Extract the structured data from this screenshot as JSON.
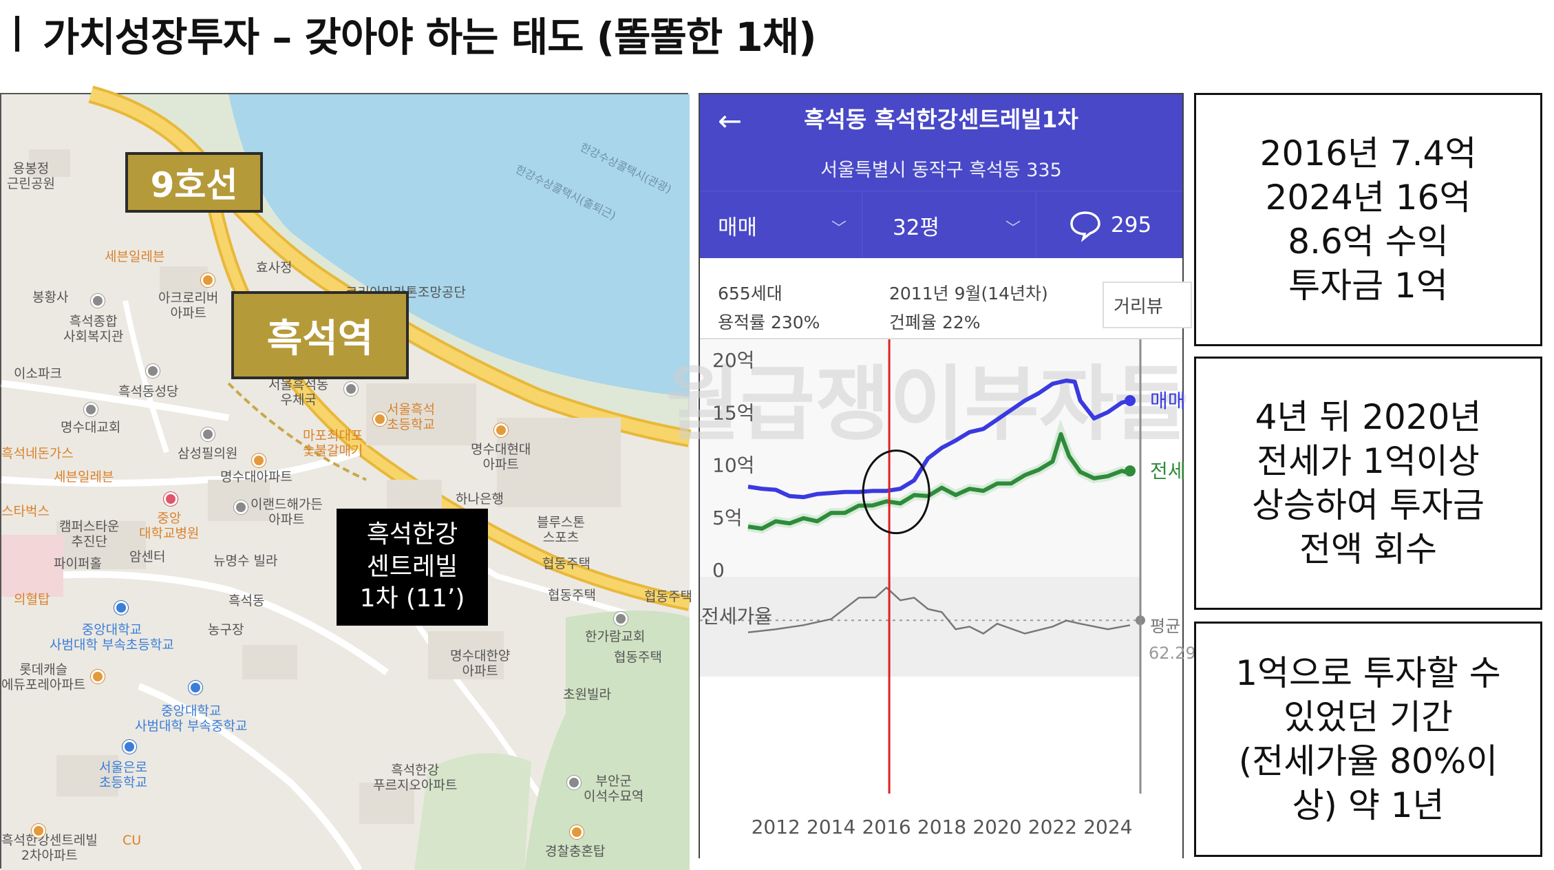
{
  "slide": {
    "title": "가치성장투자 – 갖아야 하는 태도 (똘똘한 1채)"
  },
  "map": {
    "line_tag": "9호선",
    "station_tag": "흑석역",
    "target_tag": [
      "흑석한강",
      "센트레빌",
      "1차 (11’)"
    ],
    "labels": [
      {
        "text": "용봉정\n근린공원",
        "c": ""
      },
      {
        "text": "세븐일레븐",
        "c": "orange"
      },
      {
        "text": "효사정",
        "c": ""
      },
      {
        "text": "봉황사",
        "c": ""
      },
      {
        "text": "아크로리버\n아파트",
        "c": ""
      },
      {
        "text": "흑석종합\n사회복지관",
        "c": ""
      },
      {
        "text": "이소파크",
        "c": ""
      },
      {
        "text": "흑석동성당",
        "c": ""
      },
      {
        "text": "서울흑석동\n우체국",
        "c": ""
      },
      {
        "text": "서울흑석\n초등학교",
        "c": "orange"
      },
      {
        "text": "명수대교회",
        "c": ""
      },
      {
        "text": "마포최대포\n숯불갈매기",
        "c": "orange"
      },
      {
        "text": "명수대현대\n아파트",
        "c": ""
      },
      {
        "text": "삼성필의원",
        "c": ""
      },
      {
        "text": "흑석네돈가스",
        "c": "orange"
      },
      {
        "text": "세븐일레븐",
        "c": "orange"
      },
      {
        "text": "명수대아파트",
        "c": ""
      },
      {
        "text": "하나은행",
        "c": ""
      },
      {
        "text": "스타벅스",
        "c": "orange"
      },
      {
        "text": "캠퍼스타운\n추진단",
        "c": ""
      },
      {
        "text": "중앙\n대학교병원",
        "c": "orange"
      },
      {
        "text": "이랜드해가든\n아파트",
        "c": ""
      },
      {
        "text": "블루스톤\n스포츠",
        "c": ""
      },
      {
        "text": "파이퍼홀",
        "c": ""
      },
      {
        "text": "암센터",
        "c": ""
      },
      {
        "text": "뉴명수 빌라",
        "c": ""
      },
      {
        "text": "협동주택",
        "c": ""
      },
      {
        "text": "의혈탑",
        "c": "orange"
      },
      {
        "text": "흑석동",
        "c": ""
      },
      {
        "text": "협동주택",
        "c": ""
      },
      {
        "text": "협동주택",
        "c": ""
      },
      {
        "text": "중앙대학교\n사범대학 부속초등학교",
        "c": "blue"
      },
      {
        "text": "농구장",
        "c": ""
      },
      {
        "text": "한가람교회",
        "c": ""
      },
      {
        "text": "협동주택",
        "c": ""
      },
      {
        "text": "롯데캐슬\n에듀포레아파트",
        "c": ""
      },
      {
        "text": "명수대한양\n아파트",
        "c": ""
      },
      {
        "text": "중앙대학교\n사범대학 부속중학교",
        "c": "blue"
      },
      {
        "text": "초원빌라",
        "c": ""
      },
      {
        "text": "서울은로\n초등학교",
        "c": "blue"
      },
      {
        "text": "흑석한강\n푸르지오아파트",
        "c": ""
      },
      {
        "text": "부안군\n이석수묘역",
        "c": ""
      },
      {
        "text": "흑석한강센트레빌\n2차아파트",
        "c": ""
      },
      {
        "text": "CU",
        "c": "orange"
      },
      {
        "text": "경찰충혼탑",
        "c": ""
      },
      {
        "text": "코리아마라톤조망공단",
        "c": ""
      },
      {
        "text": "한강수상콜택시(관광)",
        "c": "river"
      },
      {
        "text": "한강수상콜택시(출퇴근)",
        "c": "river"
      }
    ]
  },
  "app": {
    "back_icon": "arrow-left-icon",
    "title": "흑석동 흑석한강센트레빌1차",
    "address": "서울특별시 동작구 흑석동 335",
    "tabs": {
      "deal": "매매",
      "size": "32평",
      "comments": "295"
    },
    "info": {
      "households": "655세대",
      "completion": "2011년 9월(14년차)",
      "far": "용적률 230%",
      "bcr": "건폐율 22%",
      "distance_btn": "거리뷰"
    },
    "watermark": "월급쟁이부자들",
    "chart_data": {
      "type": "line",
      "x_ticks": [
        "2012",
        "2014",
        "2016",
        "2018",
        "2020",
        "2022",
        "2024"
      ],
      "y_ticks": [
        "20억",
        "15억",
        "10억",
        "5억",
        "0"
      ],
      "ylim": [
        0,
        20
      ],
      "xlim": [
        2011.0,
        2024.8
      ],
      "marker_year": 2016.1,
      "series": [
        {
          "name": "매매",
          "color": "#3a3ae0",
          "x": [
            2011.0,
            2011.5,
            2012.0,
            2012.5,
            2013.0,
            2013.5,
            2014.0,
            2014.5,
            2015.0,
            2015.5,
            2016.0,
            2016.5,
            2017.0,
            2017.5,
            2018.0,
            2018.5,
            2019.0,
            2019.5,
            2020.0,
            2020.5,
            2021.0,
            2021.5,
            2022.0,
            2022.5,
            2022.8,
            2023.0,
            2023.5,
            2024.0,
            2024.5,
            2024.8
          ],
          "y": [
            7.8,
            7.6,
            7.5,
            6.9,
            6.8,
            7.1,
            7.2,
            7.3,
            7.3,
            7.4,
            7.4,
            7.6,
            8.4,
            10.5,
            11.5,
            12.2,
            13.0,
            13.3,
            14.2,
            15.1,
            16.0,
            16.7,
            17.6,
            17.9,
            17.8,
            16.0,
            14.3,
            14.9,
            15.8,
            16.0
          ]
        },
        {
          "name": "전세",
          "color": "#2e8b3a",
          "x": [
            2011.0,
            2011.5,
            2012.0,
            2012.5,
            2013.0,
            2013.5,
            2014.0,
            2014.5,
            2015.0,
            2015.5,
            2016.0,
            2016.5,
            2017.0,
            2017.5,
            2018.0,
            2018.5,
            2019.0,
            2019.5,
            2020.0,
            2020.5,
            2021.0,
            2021.5,
            2022.0,
            2022.3,
            2022.6,
            2023.0,
            2023.5,
            2024.0,
            2024.5,
            2024.8
          ],
          "y": [
            3.8,
            4.0,
            4.3,
            4.5,
            4.6,
            4.7,
            5.1,
            5.5,
            5.8,
            6.2,
            6.2,
            6.4,
            6.8,
            7.1,
            7.5,
            7.2,
            7.4,
            7.6,
            7.9,
            8.3,
            8.7,
            9.6,
            10.0,
            13.0,
            10.5,
            9.4,
            8.4,
            9.0,
            9.1,
            9.3
          ]
        }
      ],
      "ratio_series": {
        "name": "전세가율",
        "avg_label": "평균",
        "avg_value": "62.29",
        "x": [
          2011.0,
          2012.0,
          2013.0,
          2014.0,
          2015.0,
          2015.6,
          2016.0,
          2016.5,
          2017.0,
          2017.5,
          2018.0,
          2018.5,
          2019.0,
          2019.5,
          2020.0,
          2021.0,
          2022.0,
          2022.5,
          2023.0,
          2024.0,
          2024.8
        ],
        "y": [
          52,
          58,
          57,
          65,
          76,
          80,
          83,
          78,
          76,
          72,
          66,
          58,
          56,
          55,
          58,
          55,
          56,
          64,
          58,
          58,
          57
        ]
      }
    }
  },
  "boxes": [
    [
      "2016년 7.4억",
      "2024년 16억",
      "8.6억 수익",
      "투자금 1억"
    ],
    [
      "4년 뒤 2020년",
      "전세가 1억이상",
      "상승하여 투자금",
      "전액 회수"
    ],
    [
      "1억으로 투자할 수",
      "있었던 기간",
      "(전세가율 80%이",
      "상) 약 1년"
    ]
  ]
}
